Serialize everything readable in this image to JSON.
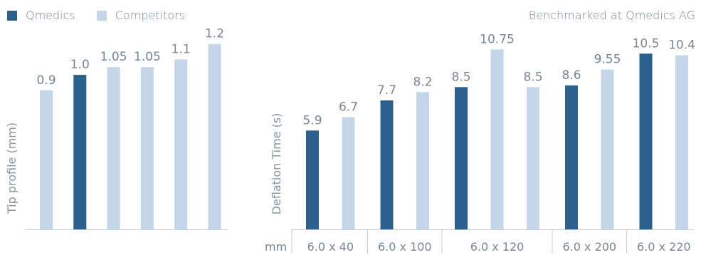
{
  "legend": {
    "items": [
      {
        "label": "Qmedics",
        "color": "#2b5f8c"
      },
      {
        "label": "Competitors",
        "color": "#c5d6ea"
      }
    ]
  },
  "note": "Benchmarked at Qmedics AG",
  "chart_data": [
    {
      "type": "bar",
      "title": "",
      "xlabel": "",
      "ylabel": "Tip profile (mm)",
      "ylim": [
        0,
        1.3
      ],
      "categories": [
        "",
        "",
        "",
        "",
        "",
        ""
      ],
      "values": [
        0.9,
        1.0,
        1.05,
        1.05,
        1.1,
        1.2
      ],
      "value_labels": [
        "0.9",
        "1.0",
        "1.05",
        "1.05",
        "1.1",
        "1.2"
      ],
      "brands": [
        "Competitors",
        "Qmedics",
        "Competitors",
        "Competitors",
        "Competitors",
        "Competitors"
      ]
    },
    {
      "type": "bar",
      "title": "",
      "xlabel": "mm",
      "ylabel": "Deflation Time (s)",
      "ylim": [
        0,
        12
      ],
      "groups": [
        {
          "label": "6.0 x 40",
          "bars": [
            {
              "value": 5.9,
              "label": "5.9",
              "brand": "Qmedics"
            },
            {
              "value": 6.7,
              "label": "6.7",
              "brand": "Competitors"
            }
          ]
        },
        {
          "label": "6.0 x 100",
          "bars": [
            {
              "value": 7.7,
              "label": "7.7",
              "brand": "Qmedics"
            },
            {
              "value": 8.2,
              "label": "8.2",
              "brand": "Competitors"
            }
          ]
        },
        {
          "label": "6.0 x 120",
          "bars": [
            {
              "value": 8.5,
              "label": "8.5",
              "brand": "Qmedics"
            },
            {
              "value": 10.75,
              "label": "10.75",
              "brand": "Competitors"
            },
            {
              "value": 8.5,
              "label": "8.5",
              "brand": "Competitors"
            }
          ]
        },
        {
          "label": "6.0 x 200",
          "bars": [
            {
              "value": 8.6,
              "label": "8.6",
              "brand": "Qmedics"
            },
            {
              "value": 9.55,
              "label": "9.55",
              "brand": "Competitors"
            }
          ]
        },
        {
          "label": "6.0 x 220",
          "bars": [
            {
              "value": 10.5,
              "label": "10.5",
              "brand": "Qmedics"
            },
            {
              "value": 10.4,
              "label": "10.4",
              "brand": "Competitors"
            }
          ]
        }
      ]
    }
  ]
}
